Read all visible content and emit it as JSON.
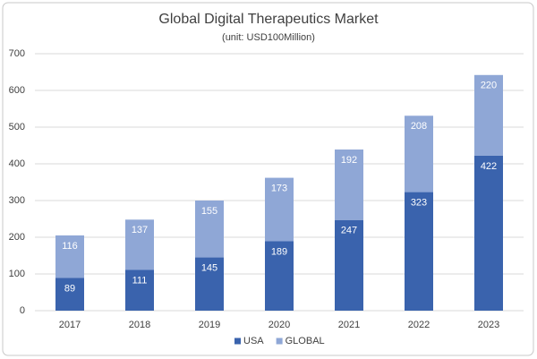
{
  "chart_data": {
    "type": "stacked_bar",
    "title": "Global Digital Therapeutics Market",
    "subtitle": "(unit: USD100Million)",
    "categories": [
      "2017",
      "2018",
      "2019",
      "2020",
      "2021",
      "2022",
      "2023"
    ],
    "series": [
      {
        "name": "USA",
        "color": "#3a63ad",
        "values": [
          89,
          111,
          145,
          189,
          247,
          323,
          422
        ]
      },
      {
        "name": "GLOBAL",
        "color": "#8fa7d6",
        "values": [
          116,
          137,
          155,
          173,
          192,
          208,
          220
        ]
      }
    ],
    "ylim": [
      0,
      700
    ],
    "yticks": [
      0,
      100,
      200,
      300,
      400,
      500,
      600,
      700
    ],
    "grid": true,
    "legend": "bottom"
  }
}
